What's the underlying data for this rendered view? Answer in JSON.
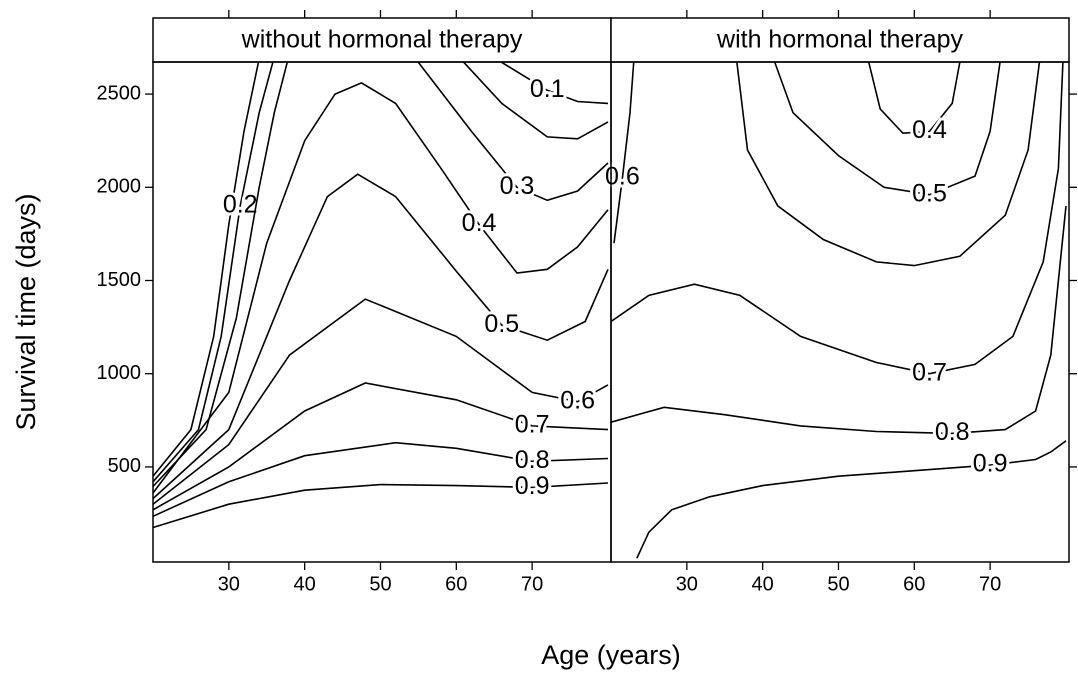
{
  "chart_data": {
    "type": "contour",
    "xlabel": "Age (years)",
    "ylabel": "Survival time (days)",
    "xlim": [
      20,
      80.4
    ],
    "ylim": [
      -10,
      2672
    ],
    "xticks": [
      30,
      40,
      50,
      60,
      70
    ],
    "yticks": [
      500,
      1000,
      1500,
      2000,
      2500
    ],
    "color": "#000000",
    "panels": [
      {
        "title": "without hormonal therapy",
        "series": [
          {
            "name": "0.1",
            "x": [
              20,
              25,
              28,
              30,
              32,
              33.9,
              null,
              66,
              72,
              76,
              80
            ],
            "y": [
              450,
              700,
              1200,
              1800,
              2300,
              2670,
              null,
              2670,
              2520,
              2460,
              2450
            ]
          },
          {
            "name": "0.2",
            "x": [
              20,
              26,
              29,
              31.5,
              34,
              35.8,
              null,
              61,
              66,
              72,
              76,
              80
            ],
            "y": [
              420,
              700,
              1200,
              1900,
              2400,
              2670,
              null,
              2670,
              2450,
              2270,
              2260,
              2350
            ]
          },
          {
            "name": "0.3",
            "x": [
              20,
              27,
              31,
              34,
              36,
              37.7,
              null,
              55,
              62,
              68,
              72,
              76,
              80
            ],
            "y": [
              395,
              700,
              1300,
              2000,
              2400,
              2670,
              null,
              2670,
              2300,
              2000,
              1930,
              1980,
              2130
            ]
          },
          {
            "name": "0.4",
            "x": [
              20,
              30,
              35,
              40,
              44,
              47.5,
              52,
              58,
              63,
              68,
              72,
              76,
              80
            ],
            "y": [
              360,
              900,
              1700,
              2250,
              2500,
              2560,
              2450,
              2100,
              1800,
              1540,
              1560,
              1680,
              1880
            ]
          },
          {
            "name": "0.5",
            "x": [
              20,
              30,
              38,
              43,
              47,
              52,
              60,
              66,
              72,
              77,
              80
            ],
            "y": [
              330,
              700,
              1500,
              1950,
              2070,
              1950,
              1550,
              1260,
              1180,
              1280,
              1560
            ]
          },
          {
            "name": "0.6",
            "x": [
              20,
              30,
              38,
              48,
              60,
              70,
              76,
              80
            ],
            "y": [
              300,
              620,
              1100,
              1400,
              1200,
              900,
              850,
              940
            ]
          },
          {
            "name": "0.7",
            "x": [
              20,
              30,
              40,
              48,
              60,
              70,
              80
            ],
            "y": [
              270,
              500,
              800,
              950,
              860,
              720,
              700
            ]
          },
          {
            "name": "0.8",
            "x": [
              20,
              30,
              40,
              52,
              60,
              70,
              80
            ],
            "y": [
              235,
              420,
              560,
              630,
              600,
              530,
              545
            ]
          },
          {
            "name": "0.9",
            "x": [
              20,
              30,
              40,
              50,
              60,
              70,
              80
            ],
            "y": [
              175,
              300,
              375,
              405,
              400,
              390,
              414
            ]
          }
        ]
      },
      {
        "title": "with hormonal therapy",
        "series": [
          {
            "name": "0.4",
            "x": [
              54,
              55.5,
              58.5,
              62,
              65,
              66
            ],
            "y": [
              2670,
              2420,
              2290,
              2300,
              2450,
              2670
            ]
          },
          {
            "name": "0.5",
            "x": [
              41.6,
              44,
              50,
              56,
              62,
              68,
              70,
              71.3
            ],
            "y": [
              2670,
              2400,
              2170,
              2000,
              1960,
              2060,
              2300,
              2670
            ]
          },
          {
            "name": "0.6",
            "x": [
              20.4,
              21.5,
              22.5,
              23,
              null,
              36.6,
              38,
              42,
              48,
              55,
              60,
              66,
              72,
              75,
              76.5
            ],
            "y": [
              1700,
              2050,
              2400,
              2670,
              null,
              2670,
              2200,
              1900,
              1720,
              1600,
              1580,
              1630,
              1850,
              2200,
              2670
            ]
          },
          {
            "name": "0.7",
            "x": [
              20,
              25,
              31,
              37,
              45,
              55,
              62,
              68,
              73,
              77,
              79,
              79.6
            ],
            "y": [
              1280,
              1420,
              1480,
              1420,
              1200,
              1060,
              1000,
              1050,
              1200,
              1600,
              2100,
              2670
            ]
          },
          {
            "name": "0.8",
            "x": [
              20,
              27,
              35,
              45,
              55,
              65,
              72,
              76,
              78,
              79,
              80
            ],
            "y": [
              740,
              820,
              780,
              720,
              690,
              680,
              700,
              800,
              1100,
              1500,
              1900
            ]
          },
          {
            "name": "0.9",
            "x": [
              23.4,
              25,
              28,
              33,
              40,
              50,
              60,
              70,
              76,
              78,
              80
            ],
            "y": [
              10,
              150,
              270,
              340,
              400,
              450,
              480,
              510,
              540,
              580,
              640
            ]
          }
        ]
      }
    ]
  }
}
